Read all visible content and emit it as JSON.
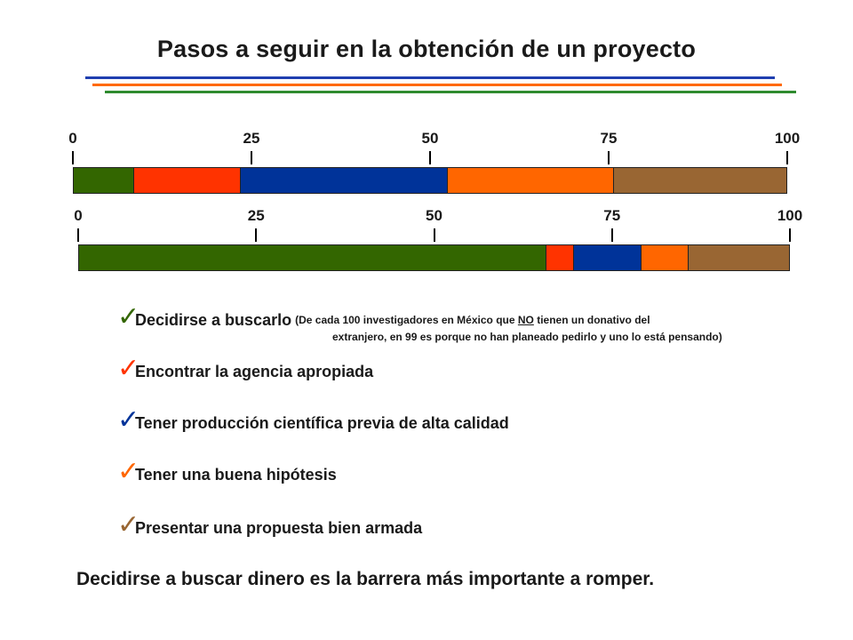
{
  "title": "Pasos a seguir en la obtención de un proyecto",
  "colors": {
    "rule_blue": "#1f3fb0",
    "rule_orange": "#ff6a00",
    "rule_green": "#2e8b2e",
    "green": "#336600",
    "red": "#ff3300",
    "blue": "#003399",
    "orange": "#ff6600",
    "brown": "#996633"
  },
  "bars": [
    {
      "scale_labels": [
        "0",
        "25",
        "50",
        "75",
        "100"
      ],
      "segments": [
        {
          "color": "#336600",
          "end": 8.5
        },
        {
          "color": "#ff3300",
          "end": 23.5
        },
        {
          "color": "#003399",
          "end": 52.5
        },
        {
          "color": "#ff6600",
          "end": 75.8
        },
        {
          "color": "#996633",
          "end": 100
        }
      ]
    },
    {
      "scale_labels": [
        "0",
        "25",
        "50",
        "75",
        "100"
      ],
      "segments": [
        {
          "color": "#336600",
          "end": 65.8
        },
        {
          "color": "#ff3300",
          "end": 69.7
        },
        {
          "color": "#003399",
          "end": 79.2
        },
        {
          "color": "#ff6600",
          "end": 85.9
        },
        {
          "color": "#996633",
          "end": 100
        }
      ]
    }
  ],
  "items": [
    {
      "label": "Decidirse a buscarlo",
      "check_color": "#336600"
    },
    {
      "label": "Encontrar la agencia apropiada",
      "check_color": "#ff3300"
    },
    {
      "label": "Tener producción científica previa de alta calidad",
      "check_color": "#003399"
    },
    {
      "label": "Tener una buena hipótesis",
      "check_color": "#ff6600"
    },
    {
      "label": "Presentar una propuesta bien armada",
      "check_color": "#996633"
    }
  ],
  "note": {
    "part1": "(De cada 100 investigadores en México que ",
    "emph": "NO",
    "part2": " tienen un donativo del",
    "line2": "extranjero, en 99 es porque no han planeado pedirlo y uno lo está pensando)"
  },
  "conclusion": "Decidirse a buscar dinero es la barrera más importante a romper."
}
